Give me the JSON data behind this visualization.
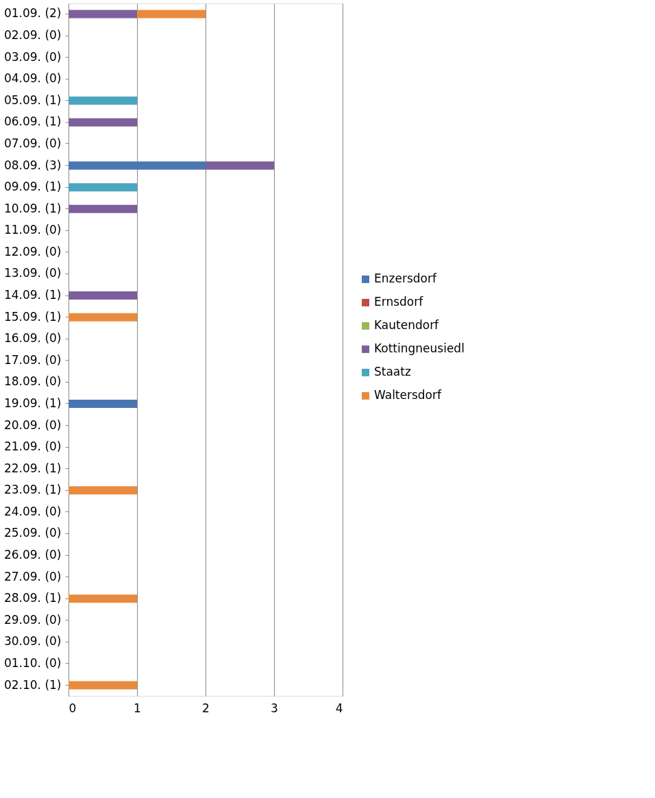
{
  "chart_data": {
    "type": "bar",
    "orientation": "horizontal",
    "stacked": true,
    "categories": [
      "01.09. (2)",
      "02.09. (0)",
      "03.09. (0)",
      "04.09. (0)",
      "05.09. (1)",
      "06.09. (1)",
      "07.09. (0)",
      "08.09. (3)",
      "09.09. (1)",
      "10.09. (1)",
      "11.09. (0)",
      "12.09. (0)",
      "13.09. (0)",
      "14.09. (1)",
      "15.09. (1)",
      "16.09. (0)",
      "17.09. (0)",
      "18.09. (0)",
      "19.09. (1)",
      "20.09. (0)",
      "21.09. (0)",
      "22.09. (1)",
      "23.09. (1)",
      "24.09. (0)",
      "25.09. (0)",
      "26.09. (0)",
      "27.09. (0)",
      "28.09. (1)",
      "29.09. (0)",
      "30.09. (0)",
      "01.10. (0)",
      "02.10. (1)"
    ],
    "series": [
      {
        "name": "Enzersdorf",
        "color": "#4a76b2",
        "values": [
          0,
          0,
          0,
          0,
          0,
          0,
          0,
          2,
          0,
          0,
          0,
          0,
          0,
          0,
          0,
          0,
          0,
          0,
          1,
          0,
          0,
          0,
          0,
          0,
          0,
          0,
          0,
          0,
          0,
          0,
          0,
          0
        ]
      },
      {
        "name": "Ernsdorf",
        "color": "#be4b48",
        "values": [
          0,
          0,
          0,
          0,
          0,
          0,
          0,
          0,
          0,
          0,
          0,
          0,
          0,
          0,
          0,
          0,
          0,
          0,
          0,
          0,
          0,
          0,
          0,
          0,
          0,
          0,
          0,
          0,
          0,
          0,
          0,
          0
        ]
      },
      {
        "name": "Kautendorf",
        "color": "#98b954",
        "values": [
          0,
          0,
          0,
          0,
          0,
          0,
          0,
          0,
          0,
          0,
          0,
          0,
          0,
          0,
          0,
          0,
          0,
          0,
          0,
          0,
          0,
          0,
          0,
          0,
          0,
          0,
          0,
          0,
          0,
          0,
          0,
          0
        ]
      },
      {
        "name": "Kottingneusiedl",
        "color": "#7d5f9c",
        "values": [
          1,
          0,
          0,
          0,
          0,
          1,
          0,
          1,
          0,
          1,
          0,
          0,
          0,
          1,
          0,
          0,
          0,
          0,
          0,
          0,
          0,
          0,
          0,
          0,
          0,
          0,
          0,
          0,
          0,
          0,
          0,
          0
        ]
      },
      {
        "name": "Staatz",
        "color": "#4aa6bf",
        "values": [
          0,
          0,
          0,
          0,
          1,
          0,
          0,
          0,
          1,
          0,
          0,
          0,
          0,
          0,
          0,
          0,
          0,
          0,
          0,
          0,
          0,
          0,
          0,
          0,
          0,
          0,
          0,
          0,
          0,
          0,
          0,
          0
        ]
      },
      {
        "name": "Waltersdorf",
        "color": "#e98b3f",
        "values": [
          1,
          0,
          0,
          0,
          0,
          0,
          0,
          0,
          0,
          0,
          0,
          0,
          0,
          0,
          1,
          0,
          0,
          0,
          0,
          0,
          0,
          0,
          1,
          0,
          0,
          0,
          0,
          1,
          0,
          0,
          0,
          1
        ]
      }
    ],
    "xlim": [
      0,
      4
    ],
    "xticks": [
      0,
      1,
      2,
      3,
      4
    ],
    "grid": "x",
    "legend": "right"
  }
}
